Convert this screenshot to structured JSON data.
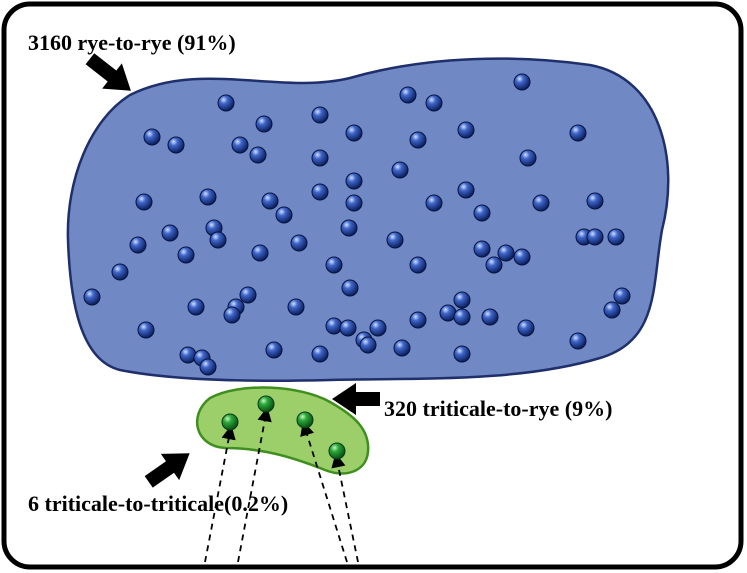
{
  "labels": {
    "rye_to_rye": "3160 rye-to-rye (91%)",
    "triticale_to_rye": "320 triticale-to-rye (9%)",
    "triticale_to_triticale": "6 triticale-to-triticale(0.2%)"
  },
  "colors": {
    "frame_stroke": "#000000",
    "rye_region_fill": "#7088c4",
    "rye_region_stroke": "#1f2f6b",
    "rye_dot": "#1e3f9a",
    "triticale_region_fill": "#9ccf6a",
    "triticale_region_stroke": "#3f8f1f",
    "triticale_dot": "#1f8f2a",
    "arrow": "#000000"
  }
}
